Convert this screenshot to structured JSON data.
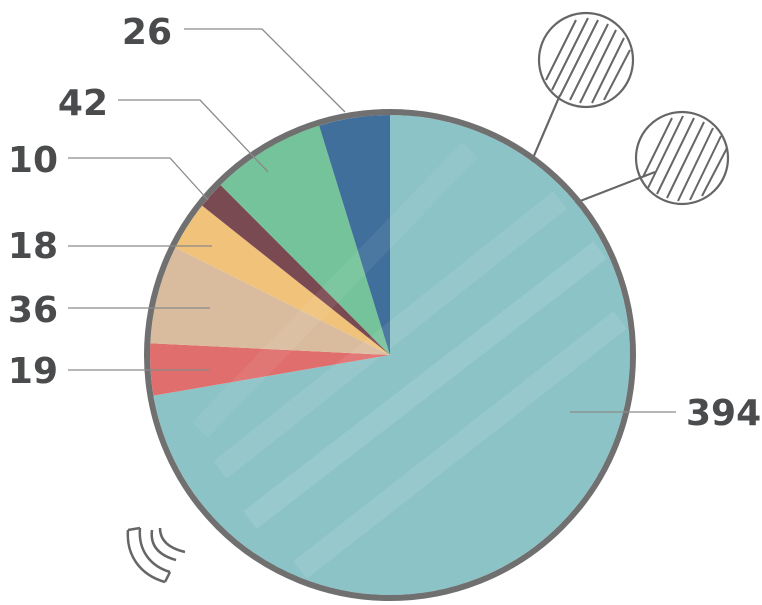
{
  "chart_data": {
    "type": "pie",
    "title": "",
    "slices": [
      {
        "value": 394,
        "color": "#8cc3c7"
      },
      {
        "value": 19,
        "color": "#e06e6c"
      },
      {
        "value": 36,
        "color": "#d9bc9e"
      },
      {
        "value": 18,
        "color": "#f1c27a"
      },
      {
        "value": 10,
        "color": "#7a4a52"
      },
      {
        "value": 42,
        "color": "#74c39a"
      },
      {
        "value": 26,
        "color": "#3f6f9a"
      }
    ],
    "labels": [
      "394",
      "19",
      "36",
      "18",
      "10",
      "42",
      "26"
    ],
    "start": "12 o'clock",
    "direction": "clockwise",
    "style": "hand-drawn watercolor with pins"
  }
}
